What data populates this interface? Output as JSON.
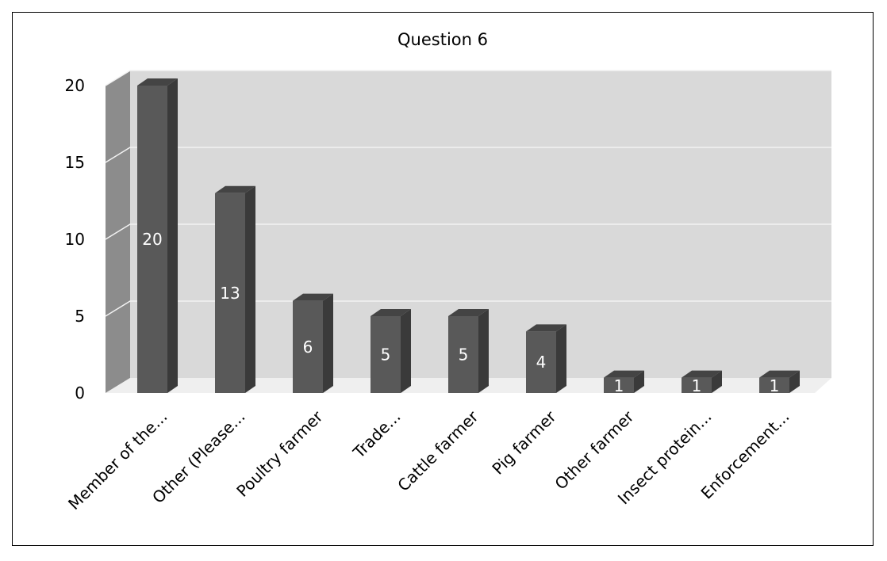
{
  "chart_data": {
    "type": "bar",
    "title": "Question 6",
    "categories": [
      "Member of the...",
      "Other (Please...",
      "Poultry farmer",
      "Trade...",
      "Cattle farmer",
      "Pig farmer",
      "Other farmer",
      "Insect protein...",
      "Enforcement..."
    ],
    "values": [
      20,
      13,
      6,
      5,
      5,
      4,
      1,
      1,
      1
    ],
    "ylim": [
      0,
      20
    ],
    "yticks": [
      0,
      5,
      10,
      15,
      20
    ],
    "xlabel": "",
    "ylabel": "",
    "grid": true,
    "legend": "none",
    "colors": {
      "bar_front": "#595959",
      "bar_side": "#3a3a3a",
      "bar_top": "#444444",
      "back_wall": "#d9d9d9",
      "side_wall": "#8c8c8c",
      "label": "#ffffff"
    }
  }
}
